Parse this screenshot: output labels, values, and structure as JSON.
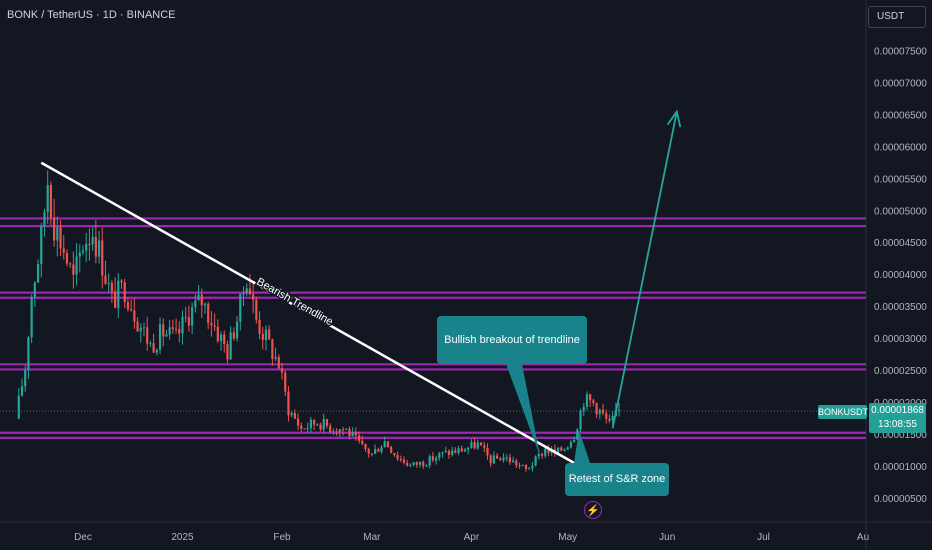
{
  "header": {
    "symbol_title": "BONK / TetherUS · 1D · BINANCE"
  },
  "currency_button": {
    "label": "USDT"
  },
  "price_tag": {
    "symbol": "BONKUSDT",
    "price": "0.00001868",
    "countdown": "13:08:55"
  },
  "annotations": {
    "trendline_label": "Bearish Trendline",
    "breakout_label": "Bullish breakout of trendline",
    "retest_label": "Retest of S&R zone"
  },
  "colors": {
    "background": "#131722",
    "bull": "#26a69a",
    "bear": "#ef5350",
    "zone": "#9c27b0",
    "callout": "#18838b",
    "arrow": "#26a69a",
    "trendline": "#ffffff"
  },
  "icons": {
    "flash": "lightning-icon"
  },
  "chart_data": {
    "type": "candlestick",
    "title": "BONK / TetherUS · 1D · BINANCE",
    "y_axis": {
      "ticks": [
        "0.00000500",
        "0.00001000",
        "0.00001500",
        "0.00002000",
        "0.00002500",
        "0.00003000",
        "0.00003500",
        "0.00004000",
        "0.00004500",
        "0.00005000",
        "0.00005500",
        "0.00006000",
        "0.00006500",
        "0.00007000",
        "0.00007500"
      ],
      "ylim": [
        2e-07,
        8e-05
      ]
    },
    "x_axis": {
      "ticks": [
        "Dec",
        "2025",
        "Feb",
        "Mar",
        "Apr",
        "May",
        "Jun",
        "Jul",
        "Au"
      ]
    },
    "close_path": [
      [
        "2024-11-10",
        1.75e-05
      ],
      [
        "2024-11-13",
        2.55e-05
      ],
      [
        "2024-11-15",
        3.7e-05
      ],
      [
        "2024-11-18",
        4.55e-05
      ],
      [
        "2024-11-20",
        5.5e-05
      ],
      [
        "2024-11-22",
        4.8e-05
      ],
      [
        "2024-11-25",
        4.4e-05
      ],
      [
        "2024-11-28",
        3.9e-05
      ],
      [
        "2024-12-01",
        4.5e-05
      ],
      [
        "2024-12-04",
        4.7e-05
      ],
      [
        "2024-12-07",
        4.2e-05
      ],
      [
        "2024-12-10",
        3.6e-05
      ],
      [
        "2024-12-14",
        3.8e-05
      ],
      [
        "2024-12-18",
        3.3e-05
      ],
      [
        "2024-12-22",
        2.9e-05
      ],
      [
        "2024-12-26",
        3.1e-05
      ],
      [
        "2024-12-30",
        3e-05
      ],
      [
        "2025-01-03",
        3.4e-05
      ],
      [
        "2025-01-07",
        3.6e-05
      ],
      [
        "2025-01-11",
        3.2e-05
      ],
      [
        "2025-01-15",
        2.8e-05
      ],
      [
        "2025-01-19",
        3.5e-05
      ],
      [
        "2025-01-21",
        4e-05
      ],
      [
        "2025-01-24",
        3.3e-05
      ],
      [
        "2025-01-28",
        2.9e-05
      ],
      [
        "2025-01-31",
        2.6e-05
      ],
      [
        "2025-02-03",
        1.9e-05
      ],
      [
        "2025-02-07",
        1.6e-05
      ],
      [
        "2025-02-12",
        1.7e-05
      ],
      [
        "2025-02-16",
        1.62e-05
      ],
      [
        "2025-02-21",
        1.58e-05
      ],
      [
        "2025-02-26",
        1.3e-05
      ],
      [
        "2025-03-01",
        1.2e-05
      ],
      [
        "2025-03-05",
        1.4e-05
      ],
      [
        "2025-03-09",
        1.15e-05
      ],
      [
        "2025-03-13",
        1.02e-05
      ],
      [
        "2025-03-18",
        1.08e-05
      ],
      [
        "2025-03-23",
        1.2e-05
      ],
      [
        "2025-03-28",
        1.25e-05
      ],
      [
        "2025-04-03",
        1.35e-05
      ],
      [
        "2025-04-07",
        1.1e-05
      ],
      [
        "2025-04-11",
        1.15e-05
      ],
      [
        "2025-04-15",
        1.05e-05
      ],
      [
        "2025-04-18",
        9.5e-06
      ],
      [
        "2025-04-21",
        1.1e-05
      ],
      [
        "2025-04-24",
        1.28e-05
      ],
      [
        "2025-04-27",
        1.2e-05
      ],
      [
        "2025-04-30",
        1.3e-05
      ],
      [
        "2025-05-03",
        1.5e-05
      ],
      [
        "2025-05-06",
        2.05e-05
      ],
      [
        "2025-05-09",
        2e-05
      ],
      [
        "2025-05-12",
        1.8e-05
      ],
      [
        "2025-05-14",
        1.65e-05
      ],
      [
        "2025-05-17",
        1.87e-05
      ]
    ],
    "zones": [
      {
        "low": 4.76e-05,
        "high": 4.88e-05
      },
      {
        "low": 3.64e-05,
        "high": 3.72e-05
      },
      {
        "low": 2.52e-05,
        "high": 2.6e-05
      },
      {
        "low": 1.45e-05,
        "high": 1.53e-05
      }
    ],
    "trendline": {
      "from": [
        "2024-11-18",
        5.75e-05
      ],
      "to": [
        "2025-05-04",
        1.03e-05
      ],
      "label": "Bearish Trendline"
    },
    "projection": {
      "from": [
        "2025-05-15",
        1.6e-05
      ],
      "to": [
        "2025-06-04",
        6.55e-05
      ]
    },
    "current_price": 1.868e-05
  }
}
